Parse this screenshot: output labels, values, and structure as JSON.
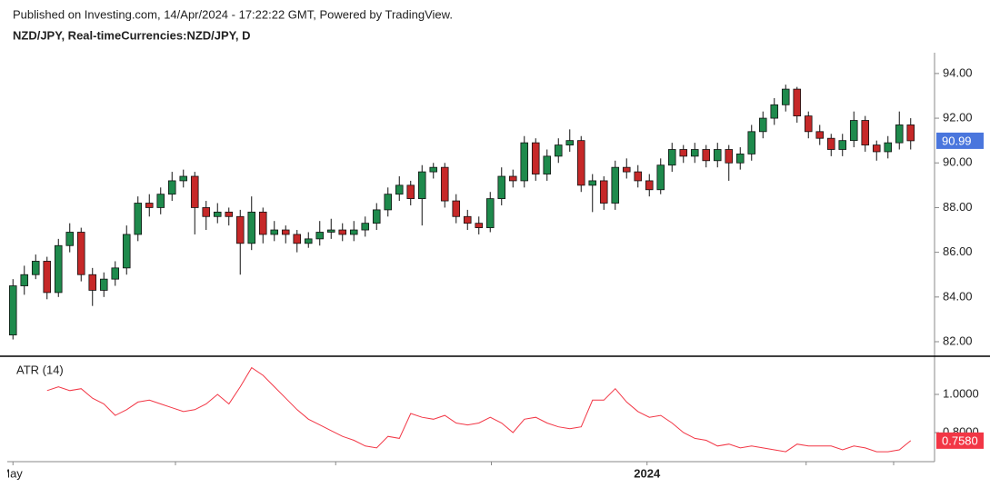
{
  "header": "Published on Investing.com, 14/Apr/2024 - 17:22:22 GMT, Powered by TradingView.",
  "chart_data": [
    {
      "type": "candlestick",
      "title": "NZD/JPY, Real-timeCurrencies:NZD/JPY, D",
      "up_color": "#1e8a4c",
      "down_color": "#c62828",
      "candles": [
        [
          82.3,
          84.8,
          82.1,
          84.5
        ],
        [
          84.5,
          85.4,
          84.1,
          85.0
        ],
        [
          85.0,
          85.9,
          84.8,
          85.6
        ],
        [
          85.6,
          85.8,
          83.9,
          84.2
        ],
        [
          84.2,
          86.6,
          84.0,
          86.3
        ],
        [
          86.3,
          87.3,
          86.0,
          86.9
        ],
        [
          86.9,
          87.1,
          84.7,
          85.0
        ],
        [
          85.0,
          85.3,
          83.6,
          84.3
        ],
        [
          84.3,
          85.1,
          84.0,
          84.8
        ],
        [
          84.8,
          85.6,
          84.5,
          85.3
        ],
        [
          85.3,
          87.2,
          85.0,
          86.8
        ],
        [
          86.8,
          88.5,
          86.5,
          88.2
        ],
        [
          88.2,
          88.6,
          87.6,
          88.0
        ],
        [
          88.0,
          88.9,
          87.7,
          88.6
        ],
        [
          88.6,
          89.6,
          88.3,
          89.2
        ],
        [
          89.2,
          89.7,
          88.9,
          89.4
        ],
        [
          89.4,
          89.6,
          86.8,
          88.0
        ],
        [
          88.0,
          88.3,
          87.0,
          87.6
        ],
        [
          87.6,
          88.2,
          87.3,
          87.8
        ],
        [
          87.8,
          88.0,
          87.2,
          87.6
        ],
        [
          87.6,
          87.9,
          85.0,
          86.4
        ],
        [
          86.4,
          88.5,
          86.1,
          87.8
        ],
        [
          87.8,
          88.0,
          86.4,
          86.8
        ],
        [
          86.8,
          87.4,
          86.5,
          87.0
        ],
        [
          87.0,
          87.2,
          86.4,
          86.8
        ],
        [
          86.8,
          87.0,
          86.0,
          86.4
        ],
        [
          86.4,
          86.9,
          86.2,
          86.6
        ],
        [
          86.6,
          87.4,
          86.3,
          86.9
        ],
        [
          86.9,
          87.5,
          86.6,
          87.0
        ],
        [
          87.0,
          87.3,
          86.5,
          86.8
        ],
        [
          86.8,
          87.4,
          86.5,
          87.0
        ],
        [
          87.0,
          87.6,
          86.7,
          87.3
        ],
        [
          87.3,
          88.2,
          87.0,
          87.9
        ],
        [
          87.9,
          88.9,
          87.6,
          88.6
        ],
        [
          88.6,
          89.4,
          88.3,
          89.0
        ],
        [
          89.0,
          89.2,
          88.1,
          88.4
        ],
        [
          88.4,
          89.9,
          87.2,
          89.6
        ],
        [
          89.6,
          90.0,
          89.3,
          89.8
        ],
        [
          89.8,
          90.0,
          88.0,
          88.3
        ],
        [
          88.3,
          88.6,
          87.3,
          87.6
        ],
        [
          87.6,
          87.9,
          87.0,
          87.3
        ],
        [
          87.3,
          87.6,
          86.8,
          87.1
        ],
        [
          87.1,
          88.7,
          86.9,
          88.4
        ],
        [
          88.4,
          89.8,
          88.1,
          89.4
        ],
        [
          89.4,
          89.7,
          88.9,
          89.2
        ],
        [
          89.2,
          91.2,
          88.9,
          90.9
        ],
        [
          90.9,
          91.1,
          89.2,
          89.5
        ],
        [
          89.5,
          90.6,
          89.2,
          90.3
        ],
        [
          90.3,
          91.1,
          90.0,
          90.8
        ],
        [
          90.8,
          91.5,
          90.5,
          91.0
        ],
        [
          91.0,
          91.2,
          88.7,
          89.0
        ],
        [
          89.0,
          89.5,
          87.8,
          89.2
        ],
        [
          89.2,
          89.4,
          87.9,
          88.2
        ],
        [
          88.2,
          90.1,
          87.9,
          89.8
        ],
        [
          89.8,
          90.2,
          89.3,
          89.6
        ],
        [
          89.6,
          89.9,
          88.9,
          89.2
        ],
        [
          89.2,
          89.5,
          88.5,
          88.8
        ],
        [
          88.8,
          90.2,
          88.6,
          89.9
        ],
        [
          89.9,
          90.9,
          89.6,
          90.6
        ],
        [
          90.6,
          90.8,
          90.0,
          90.3
        ],
        [
          90.3,
          90.9,
          90.0,
          90.6
        ],
        [
          90.6,
          90.8,
          89.8,
          90.1
        ],
        [
          90.1,
          90.9,
          89.8,
          90.6
        ],
        [
          90.6,
          90.8,
          89.2,
          90.0
        ],
        [
          90.0,
          90.7,
          89.7,
          90.4
        ],
        [
          90.4,
          91.7,
          90.1,
          91.4
        ],
        [
          91.4,
          92.3,
          91.1,
          92.0
        ],
        [
          92.0,
          92.9,
          91.7,
          92.6
        ],
        [
          92.6,
          93.5,
          92.3,
          93.3
        ],
        [
          93.3,
          93.4,
          91.8,
          92.1
        ],
        [
          92.1,
          92.3,
          91.1,
          91.4
        ],
        [
          91.4,
          91.7,
          90.8,
          91.1
        ],
        [
          91.1,
          91.3,
          90.3,
          90.6
        ],
        [
          90.6,
          91.3,
          90.3,
          91.0
        ],
        [
          91.0,
          92.3,
          90.7,
          91.9
        ],
        [
          91.9,
          92.1,
          90.5,
          90.8
        ],
        [
          90.8,
          91.0,
          90.1,
          90.5
        ],
        [
          90.5,
          91.2,
          90.2,
          90.9
        ],
        [
          90.9,
          92.3,
          90.6,
          91.7
        ],
        [
          91.7,
          92.0,
          90.6,
          90.99
        ]
      ],
      "last_value": 90.99,
      "last_value_color": "#4a76dd",
      "xlim": [
        -0.5,
        81.1
      ],
      "ylim": [
        81.35,
        94.93
      ],
      "yticks": [
        {
          "value": 82,
          "label": "82.00"
        },
        {
          "value": 84,
          "label": "84.00"
        },
        {
          "value": 86,
          "label": "86.00"
        },
        {
          "value": 88,
          "label": "88.00"
        },
        {
          "value": 90,
          "label": "90.00"
        },
        {
          "value": 92,
          "label": "92.00"
        },
        {
          "value": 94,
          "label": "94.00"
        }
      ]
    },
    {
      "type": "line",
      "title": "ATR (14)",
      "color": "#f23645",
      "values": [
        null,
        null,
        null,
        1.02,
        1.04,
        1.02,
        1.03,
        0.98,
        0.95,
        0.89,
        0.92,
        0.96,
        0.97,
        0.95,
        0.93,
        0.91,
        0.92,
        0.95,
        1.0,
        0.95,
        1.04,
        1.14,
        1.1,
        1.04,
        0.98,
        0.92,
        0.87,
        0.84,
        0.81,
        0.78,
        0.76,
        0.73,
        0.72,
        0.78,
        0.77,
        0.9,
        0.88,
        0.87,
        0.89,
        0.85,
        0.84,
        0.85,
        0.88,
        0.85,
        0.8,
        0.87,
        0.88,
        0.85,
        0.83,
        0.82,
        0.83,
        0.97,
        0.97,
        1.03,
        0.96,
        0.91,
        0.88,
        0.89,
        0.85,
        0.8,
        0.77,
        0.76,
        0.73,
        0.74,
        0.72,
        0.73,
        0.72,
        0.71,
        0.7,
        0.74,
        0.73,
        0.73,
        0.73,
        0.71,
        0.73,
        0.72,
        0.7,
        0.7,
        0.71,
        0.758
      ],
      "last_value": 0.758,
      "last_value_label": "0.7580",
      "xlim": [
        -0.5,
        81.1
      ],
      "ylim": [
        0.648,
        1.195
      ],
      "yticks": [
        {
          "value": 1,
          "label": "1.0000"
        },
        {
          "value": 0.8,
          "label": "0.8000"
        }
      ],
      "xticks": [
        {
          "value": 0,
          "label": "May"
        },
        {
          "value": 14.3,
          "label": null
        },
        {
          "value": 28.4,
          "label": null
        },
        {
          "value": 42.1,
          "label": null
        },
        {
          "value": 55.8,
          "label": "2024"
        },
        {
          "value": 69.8,
          "label": null
        },
        {
          "value": 77.5,
          "label": null
        }
      ]
    }
  ]
}
